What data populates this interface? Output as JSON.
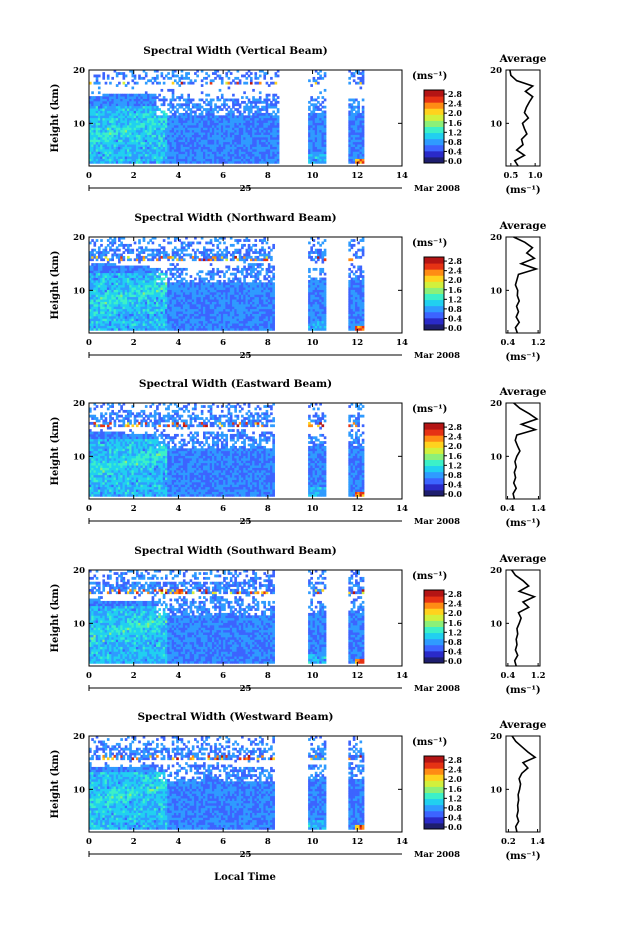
{
  "figure": {
    "xlabel": "Local Time",
    "colorbar_unit": "(ms⁻¹)",
    "colorbar_ticks": [
      "0.0",
      "0.4",
      "0.8",
      "1.2",
      "1.6",
      "2.0",
      "2.4",
      "2.8"
    ],
    "date_day": "25",
    "date_month_year": "Mar 2008",
    "colormap": [
      "#1e1e6e",
      "#2a2ac8",
      "#3c64ff",
      "#2f9bff",
      "#21d0f0",
      "#3cf0c8",
      "#8cf078",
      "#d2f03c",
      "#ffd21e",
      "#ff8c14",
      "#e63214",
      "#b41414"
    ]
  },
  "chart_data": [
    {
      "type": "heatmap",
      "title": "Spectral Width (Vertical Beam)",
      "ylabel": "Height (km)",
      "xlim": [
        0,
        14
      ],
      "ylim": [
        2,
        20
      ],
      "x_ticks": [
        "0",
        "2",
        "4",
        "6",
        "8",
        "10",
        "12",
        "14"
      ],
      "y_ticks": [
        "10",
        "20"
      ],
      "data_intervals_hours": [
        [
          0.0,
          8.5
        ],
        [
          9.8,
          10.6
        ],
        [
          11.6,
          12.3
        ]
      ],
      "colorbar_range": [
        0.0,
        2.8
      ],
      "profile": {
        "title": "Average",
        "xlabel": "(ms⁻¹)",
        "x_ticks": [
          "0.5",
          "1.0"
        ],
        "xlim": [
          0.4,
          1.1
        ],
        "y_ticks": [
          "10",
          "20"
        ],
        "height_km": [
          2,
          3,
          4,
          5,
          6,
          7,
          8,
          9,
          10,
          11,
          12,
          13,
          14,
          15,
          16,
          17,
          18,
          19,
          20
        ],
        "width_ms": [
          0.65,
          0.58,
          0.78,
          0.62,
          0.75,
          0.72,
          0.83,
          0.78,
          0.74,
          0.86,
          0.78,
          0.82,
          0.88,
          0.95,
          0.8,
          0.95,
          0.62,
          0.5,
          0.48
        ]
      }
    },
    {
      "type": "heatmap",
      "title": "Spectral Width (Northward Beam)",
      "ylabel": "Height (km)",
      "xlim": [
        0,
        14
      ],
      "ylim": [
        2,
        20
      ],
      "x_ticks": [
        "0",
        "2",
        "4",
        "6",
        "8",
        "10",
        "12",
        "14"
      ],
      "y_ticks": [
        "10",
        "20"
      ],
      "data_intervals_hours": [
        [
          0.0,
          8.3
        ],
        [
          9.8,
          10.6
        ],
        [
          11.6,
          12.3
        ]
      ],
      "colorbar_range": [
        0.0,
        2.8
      ],
      "profile": {
        "title": "Average",
        "xlabel": "(ms⁻¹)",
        "x_ticks": [
          "0.4",
          "1.2"
        ],
        "xlim": [
          0.35,
          1.25
        ],
        "y_ticks": [
          "10",
          "20"
        ],
        "height_km": [
          2,
          3,
          4,
          5,
          6,
          7,
          8,
          9,
          10,
          11,
          12,
          13,
          14,
          15,
          16,
          17,
          18,
          19,
          20
        ],
        "width_ms": [
          0.65,
          0.6,
          0.7,
          0.62,
          0.68,
          0.63,
          0.7,
          0.65,
          0.66,
          0.6,
          0.64,
          0.68,
          1.15,
          0.75,
          1.1,
          0.9,
          1.05,
          0.85,
          0.55
        ]
      }
    },
    {
      "type": "heatmap",
      "title": "Spectral Width (Eastward Beam)",
      "ylabel": "Height (km)",
      "xlim": [
        0,
        14
      ],
      "ylim": [
        2,
        20
      ],
      "x_ticks": [
        "0",
        "2",
        "4",
        "6",
        "8",
        "10",
        "12",
        "14"
      ],
      "y_ticks": [
        "10",
        "20"
      ],
      "data_intervals_hours": [
        [
          0.0,
          8.3
        ],
        [
          9.8,
          10.6
        ],
        [
          11.6,
          12.3
        ]
      ],
      "colorbar_range": [
        0.0,
        2.8
      ],
      "profile": {
        "title": "Average",
        "xlabel": "(ms⁻¹)",
        "x_ticks": [
          "0.4",
          "1.4"
        ],
        "xlim": [
          0.35,
          1.45
        ],
        "y_ticks": [
          "10",
          "20"
        ],
        "height_km": [
          2,
          3,
          4,
          5,
          6,
          7,
          8,
          9,
          10,
          11,
          12,
          13,
          14,
          15,
          16,
          17,
          18,
          19,
          20
        ],
        "width_ms": [
          0.62,
          0.58,
          0.68,
          0.6,
          0.66,
          0.62,
          0.68,
          0.64,
          0.7,
          0.8,
          0.72,
          0.65,
          0.7,
          1.3,
          0.85,
          1.35,
          1.1,
          0.8,
          0.6
        ]
      }
    },
    {
      "type": "heatmap",
      "title": "Spectral Width (Southward Beam)",
      "ylabel": "Height (km)",
      "xlim": [
        0,
        14
      ],
      "ylim": [
        2,
        20
      ],
      "x_ticks": [
        "0",
        "2",
        "4",
        "6",
        "8",
        "10",
        "12",
        "14"
      ],
      "y_ticks": [
        "10",
        "20"
      ],
      "data_intervals_hours": [
        [
          0.0,
          8.3
        ],
        [
          9.8,
          10.6
        ],
        [
          11.6,
          12.3
        ]
      ],
      "colorbar_range": [
        0.0,
        2.8
      ],
      "profile": {
        "title": "Average",
        "xlabel": "(ms⁻¹)",
        "x_ticks": [
          "0.4",
          "1.2"
        ],
        "xlim": [
          0.35,
          1.25
        ],
        "y_ticks": [
          "10",
          "20"
        ],
        "height_km": [
          2,
          3,
          4,
          5,
          6,
          7,
          8,
          9,
          10,
          11,
          12,
          13,
          14,
          15,
          16,
          17,
          18,
          19,
          20
        ],
        "width_ms": [
          0.62,
          0.58,
          0.66,
          0.6,
          0.64,
          0.62,
          0.66,
          0.64,
          0.7,
          0.75,
          0.68,
          0.95,
          0.8,
          1.1,
          0.7,
          0.95,
          0.8,
          0.6,
          0.5
        ]
      }
    },
    {
      "type": "heatmap",
      "title": "Spectral Width (Westward Beam)",
      "ylabel": "Height (km)",
      "xlim": [
        0,
        14
      ],
      "ylim": [
        2,
        20
      ],
      "x_ticks": [
        "0",
        "2",
        "4",
        "6",
        "8",
        "10",
        "12",
        "14"
      ],
      "y_ticks": [
        "10",
        "20"
      ],
      "data_intervals_hours": [
        [
          0.0,
          8.3
        ],
        [
          9.8,
          10.6
        ],
        [
          11.6,
          12.3
        ]
      ],
      "colorbar_range": [
        0.0,
        2.8
      ],
      "profile": {
        "title": "Average",
        "xlabel": "(ms⁻¹)",
        "x_ticks": [
          "0.2",
          "1.4"
        ],
        "xlim": [
          0.1,
          1.5
        ],
        "y_ticks": [
          "10",
          "20"
        ],
        "height_km": [
          2,
          3,
          4,
          5,
          6,
          7,
          8,
          9,
          10,
          11,
          12,
          13,
          14,
          15,
          16,
          17,
          18,
          19,
          20
        ],
        "width_ms": [
          0.55,
          0.5,
          0.62,
          0.55,
          0.6,
          0.58,
          0.62,
          0.6,
          0.66,
          0.7,
          0.64,
          0.75,
          1.0,
          0.8,
          1.3,
          1.0,
          0.75,
          0.5,
          0.35
        ]
      }
    }
  ]
}
